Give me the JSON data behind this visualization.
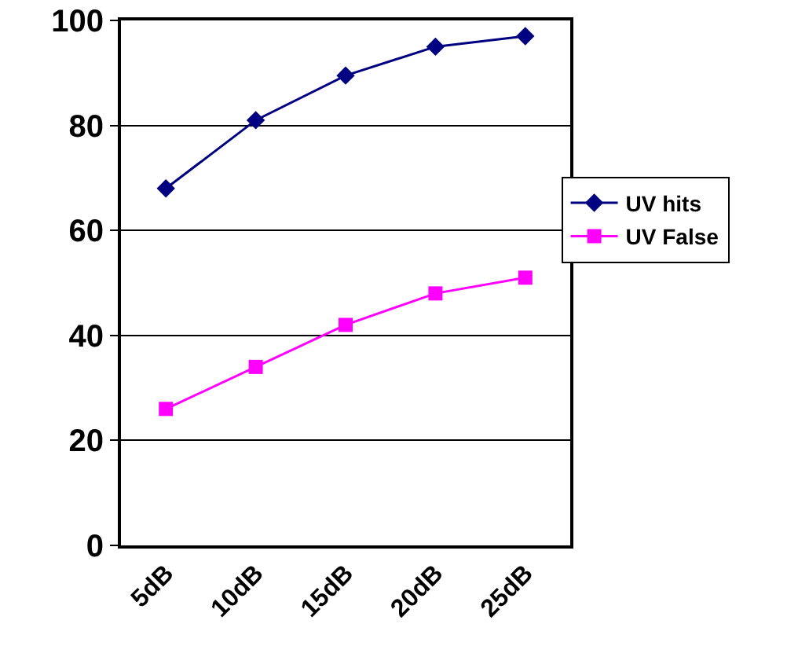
{
  "chart_data": {
    "type": "line",
    "categories": [
      "5dB",
      "10dB",
      "15dB",
      "20dB",
      "25dB"
    ],
    "series": [
      {
        "name": "UV hits",
        "color": "#000080",
        "marker": "diamond",
        "values": [
          68,
          81,
          89.5,
          95,
          97
        ]
      },
      {
        "name": "UV False",
        "color": "#ff00ff",
        "marker": "square",
        "values": [
          26,
          34,
          42,
          48,
          51
        ]
      }
    ],
    "ylim": [
      0,
      100
    ],
    "yticks": [
      0,
      20,
      40,
      60,
      80,
      100
    ],
    "grid": "y",
    "legend": "right"
  }
}
